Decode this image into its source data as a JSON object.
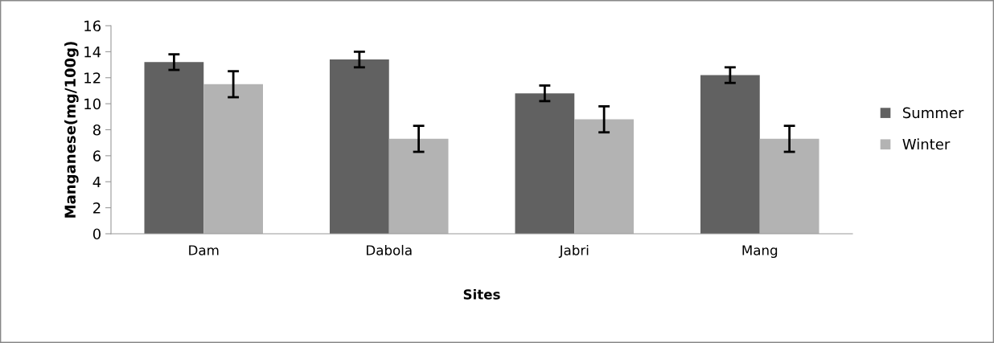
{
  "chart_data": {
    "type": "bar",
    "xlabel": "Sites",
    "ylabel": "Manganese(mg/100g)",
    "categories": [
      "Dam",
      "Dabola",
      "Jabri",
      "Mang"
    ],
    "series": [
      {
        "name": "Summer",
        "color": "#616161",
        "values": [
          13.2,
          13.4,
          10.8,
          12.2
        ],
        "errors": [
          0.6,
          0.6,
          0.6,
          0.6
        ]
      },
      {
        "name": "Winter",
        "color": "#b3b3b3",
        "values": [
          11.5,
          7.3,
          8.8,
          7.3
        ],
        "errors": [
          1.0,
          1.0,
          1.0,
          1.0
        ]
      }
    ],
    "ylim": [
      0,
      16
    ],
    "yticks": [
      0,
      2,
      4,
      6,
      8,
      10,
      12,
      14,
      16
    ],
    "grid": false,
    "legend": "right"
  }
}
